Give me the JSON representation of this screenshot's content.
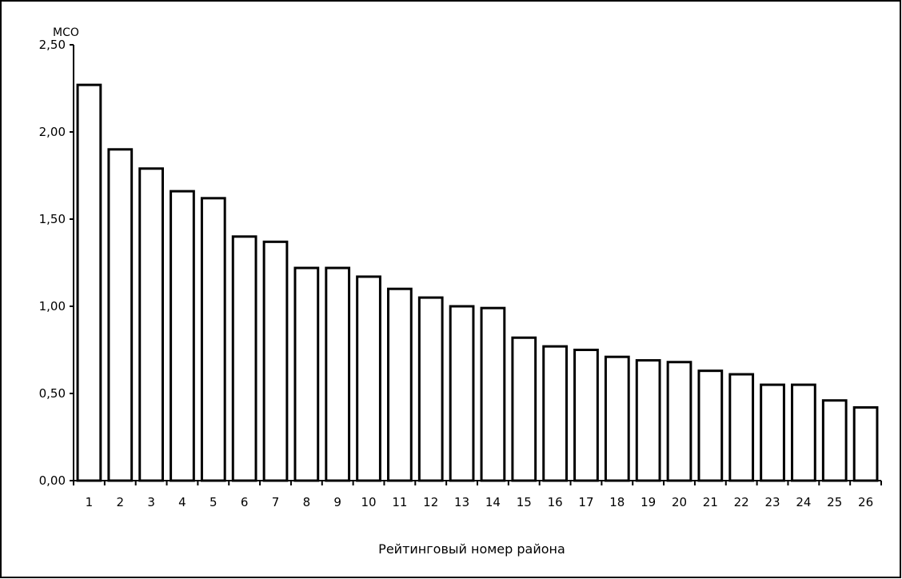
{
  "chart_data": {
    "type": "bar",
    "title": "",
    "xlabel": "Рейтинговый номер района",
    "ylabel": "МСО",
    "ylim": [
      0,
      2.5
    ],
    "yticks": [
      "0,00",
      "0,50",
      "1,00",
      "1,50",
      "2,00",
      "2,50"
    ],
    "ytick_values": [
      0,
      0.5,
      1.0,
      1.5,
      2.0,
      2.5
    ],
    "categories": [
      "1",
      "2",
      "3",
      "4",
      "5",
      "6",
      "7",
      "8",
      "9",
      "10",
      "11",
      "12",
      "13",
      "14",
      "15",
      "16",
      "17",
      "18",
      "19",
      "20",
      "21",
      "22",
      "23",
      "24",
      "25",
      "26"
    ],
    "values": [
      2.27,
      1.9,
      1.79,
      1.66,
      1.62,
      1.4,
      1.37,
      1.22,
      1.22,
      1.17,
      1.1,
      1.05,
      1.0,
      0.99,
      0.82,
      0.77,
      0.75,
      0.71,
      0.69,
      0.68,
      0.63,
      0.61,
      0.55,
      0.55,
      0.46,
      0.42
    ],
    "grid": false,
    "legend": "none",
    "colors": {
      "bar_fill": "#ffffff",
      "bar_stroke": "#000000",
      "axis": "#000000",
      "frame": "#000000",
      "background": "#ffffff"
    }
  }
}
